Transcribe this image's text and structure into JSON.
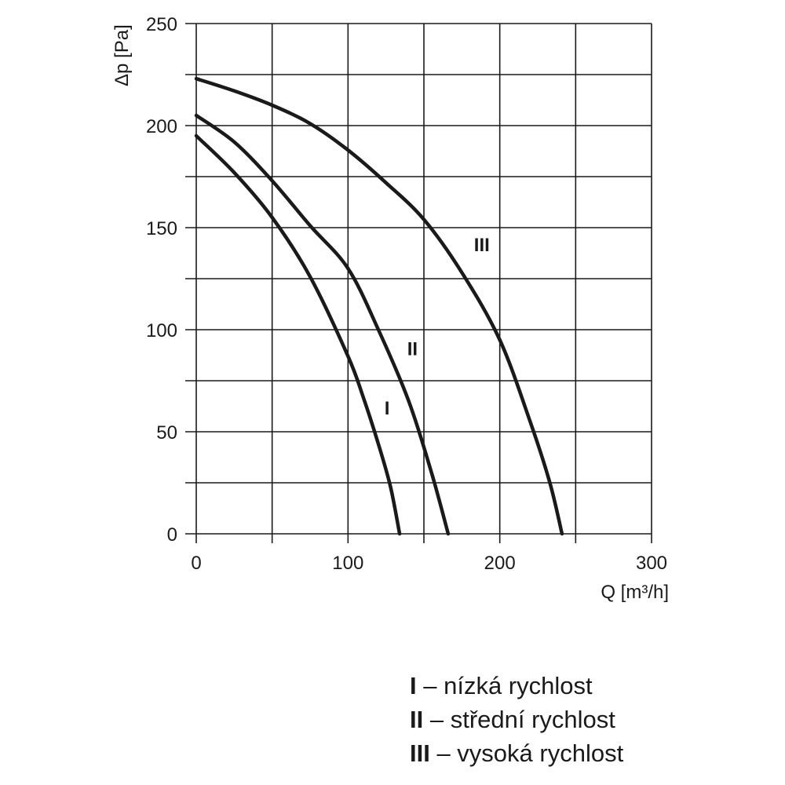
{
  "chart_data": {
    "type": "line",
    "xlabel": "Q [m³/h]",
    "ylabel": "Δp [Pa]",
    "xlim": [
      0,
      300
    ],
    "ylim": [
      0,
      250
    ],
    "xticks": [
      0,
      100,
      200,
      300
    ],
    "yticks": [
      0,
      50,
      100,
      150,
      200,
      250
    ],
    "grid": true,
    "line_color": "#1a1a1a",
    "series": [
      {
        "name": "I",
        "x": [
          0,
          25,
          50,
          75,
          100,
          110,
          120,
          128,
          134
        ],
        "y": [
          195,
          177,
          155,
          126,
          87,
          67,
          44,
          23,
          0
        ]
      },
      {
        "name": "II",
        "x": [
          0,
          25,
          50,
          75,
          100,
          120,
          140,
          155,
          166
        ],
        "y": [
          205,
          192,
          173,
          151,
          130,
          100,
          65,
          30,
          0
        ]
      },
      {
        "name": "III",
        "x": [
          0,
          25,
          50,
          75,
          100,
          125,
          150,
          175,
          200,
          220,
          233,
          241
        ],
        "y": [
          223,
          217,
          210,
          201,
          188,
          172,
          154,
          128,
          95,
          55,
          25,
          0
        ]
      }
    ],
    "curve_labels": [
      {
        "text": "I",
        "x": 124,
        "y": 62
      },
      {
        "text": "II",
        "x": 139,
        "y": 91
      },
      {
        "text": "III",
        "x": 183,
        "y": 142
      }
    ]
  },
  "legend": [
    {
      "key": "I",
      "text": " – nízká rychlost"
    },
    {
      "key": "II",
      "text": " – střední rychlost"
    },
    {
      "key": "III",
      "text": " – vysoká rychlost"
    }
  ]
}
